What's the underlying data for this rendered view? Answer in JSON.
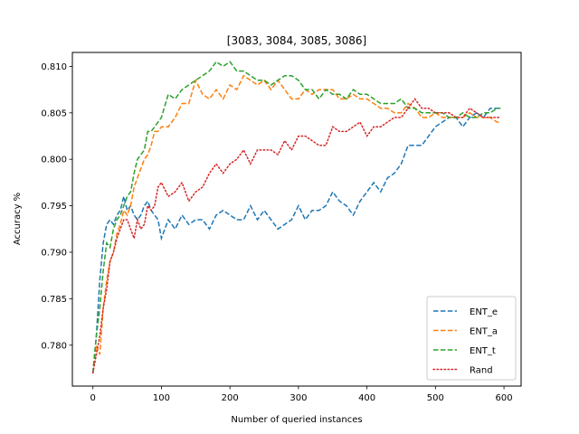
{
  "chart_data": {
    "type": "line",
    "title": "[3083, 3084, 3085, 3086]",
    "xlabel": "Number of queried instances",
    "ylabel": "Accuracy %",
    "xlim": [
      -30,
      625
    ],
    "ylim": [
      0.7756,
      0.8115
    ],
    "xticks": [
      0,
      100,
      200,
      300,
      400,
      500,
      600
    ],
    "yticks": [
      0.78,
      0.785,
      0.79,
      0.795,
      0.8,
      0.805,
      0.81
    ],
    "ytick_labels": [
      "0.780",
      "0.785",
      "0.790",
      "0.795",
      "0.800",
      "0.805",
      "0.810"
    ],
    "grid": false,
    "legend_position": "lower-right",
    "series": [
      {
        "name": "ENT_e",
        "color": "#1f77b4",
        "dash": "dashed",
        "x": [
          0,
          5,
          10,
          15,
          20,
          25,
          30,
          35,
          40,
          45,
          50,
          55,
          60,
          65,
          70,
          75,
          80,
          85,
          90,
          95,
          100,
          110,
          120,
          130,
          140,
          150,
          160,
          170,
          180,
          190,
          200,
          210,
          220,
          230,
          240,
          250,
          260,
          270,
          280,
          290,
          300,
          310,
          320,
          330,
          340,
          350,
          360,
          370,
          380,
          390,
          400,
          410,
          420,
          430,
          440,
          450,
          460,
          470,
          480,
          490,
          500,
          510,
          520,
          530,
          540,
          550,
          560,
          570,
          580,
          590,
          595
        ],
        "y": [
          0.777,
          0.781,
          0.787,
          0.791,
          0.793,
          0.7935,
          0.793,
          0.794,
          0.7945,
          0.796,
          0.7945,
          0.795,
          0.794,
          0.7935,
          0.794,
          0.795,
          0.7955,
          0.7945,
          0.794,
          0.7935,
          0.7915,
          0.7935,
          0.7925,
          0.794,
          0.793,
          0.7935,
          0.7935,
          0.7925,
          0.794,
          0.7945,
          0.794,
          0.7935,
          0.7935,
          0.795,
          0.7935,
          0.7945,
          0.7935,
          0.7925,
          0.793,
          0.7935,
          0.795,
          0.7935,
          0.7945,
          0.7945,
          0.795,
          0.7965,
          0.7955,
          0.795,
          0.794,
          0.7955,
          0.7965,
          0.7975,
          0.7965,
          0.798,
          0.7985,
          0.7995,
          0.8015,
          0.8015,
          0.8015,
          0.8025,
          0.8035,
          0.804,
          0.8045,
          0.8045,
          0.8035,
          0.8045,
          0.805,
          0.8045,
          0.8055,
          0.8055,
          0.8055
        ]
      },
      {
        "name": "ENT_a",
        "color": "#ff7f0e",
        "dash": "dashed",
        "x": [
          0,
          5,
          10,
          15,
          20,
          25,
          30,
          35,
          40,
          45,
          50,
          55,
          60,
          65,
          70,
          75,
          80,
          85,
          90,
          95,
          100,
          110,
          120,
          130,
          140,
          150,
          160,
          170,
          180,
          190,
          200,
          210,
          220,
          230,
          240,
          250,
          260,
          270,
          280,
          290,
          300,
          310,
          320,
          330,
          340,
          350,
          360,
          370,
          380,
          390,
          400,
          410,
          420,
          430,
          440,
          450,
          460,
          470,
          480,
          490,
          500,
          510,
          520,
          530,
          540,
          550,
          560,
          570,
          580,
          590,
          595
        ],
        "y": [
          0.777,
          0.78,
          0.779,
          0.784,
          0.787,
          0.789,
          0.79,
          0.792,
          0.793,
          0.7945,
          0.794,
          0.795,
          0.797,
          0.798,
          0.799,
          0.8,
          0.8005,
          0.8015,
          0.803,
          0.803,
          0.8035,
          0.8035,
          0.8045,
          0.806,
          0.806,
          0.8085,
          0.807,
          0.8065,
          0.8075,
          0.8065,
          0.808,
          0.8075,
          0.809,
          0.8085,
          0.808,
          0.8085,
          0.8075,
          0.8085,
          0.8075,
          0.8065,
          0.8065,
          0.8075,
          0.807,
          0.8075,
          0.8075,
          0.8075,
          0.8065,
          0.8065,
          0.807,
          0.8065,
          0.8065,
          0.806,
          0.8055,
          0.8055,
          0.805,
          0.805,
          0.806,
          0.8055,
          0.8045,
          0.8045,
          0.805,
          0.8045,
          0.8045,
          0.8045,
          0.8045,
          0.805,
          0.8045,
          0.8045,
          0.8045,
          0.804,
          0.804
        ]
      },
      {
        "name": "ENT_t",
        "color": "#2ca02c",
        "dash": "dashed",
        "x": [
          0,
          5,
          10,
          15,
          20,
          25,
          30,
          35,
          40,
          45,
          50,
          55,
          60,
          65,
          70,
          75,
          80,
          85,
          90,
          95,
          100,
          110,
          120,
          130,
          140,
          150,
          160,
          170,
          180,
          190,
          200,
          210,
          220,
          230,
          240,
          250,
          260,
          270,
          280,
          290,
          300,
          310,
          320,
          330,
          340,
          350,
          360,
          370,
          380,
          390,
          400,
          410,
          420,
          430,
          440,
          450,
          460,
          470,
          480,
          490,
          500,
          510,
          520,
          530,
          540,
          550,
          560,
          570,
          580,
          590,
          595
        ],
        "y": [
          0.777,
          0.781,
          0.784,
          0.788,
          0.791,
          0.7905,
          0.7925,
          0.7935,
          0.794,
          0.795,
          0.796,
          0.7965,
          0.7985,
          0.8,
          0.8005,
          0.801,
          0.803,
          0.803,
          0.8035,
          0.804,
          0.8045,
          0.807,
          0.8065,
          0.8075,
          0.808,
          0.8085,
          0.809,
          0.8095,
          0.8105,
          0.81,
          0.8105,
          0.8095,
          0.8095,
          0.809,
          0.8085,
          0.8085,
          0.808,
          0.8085,
          0.809,
          0.809,
          0.8085,
          0.8075,
          0.8075,
          0.8065,
          0.8075,
          0.807,
          0.807,
          0.8065,
          0.8075,
          0.807,
          0.807,
          0.8065,
          0.806,
          0.806,
          0.806,
          0.8065,
          0.8055,
          0.8055,
          0.805,
          0.805,
          0.805,
          0.805,
          0.8045,
          0.8045,
          0.805,
          0.8045,
          0.8045,
          0.805,
          0.805,
          0.8055,
          0.8055
        ]
      },
      {
        "name": "Rand",
        "color": "#d62728",
        "dash": "dotted",
        "x": [
          0,
          5,
          10,
          15,
          20,
          25,
          30,
          35,
          40,
          45,
          50,
          55,
          60,
          65,
          70,
          75,
          80,
          85,
          90,
          95,
          100,
          110,
          120,
          130,
          140,
          150,
          160,
          170,
          180,
          190,
          200,
          210,
          220,
          230,
          240,
          250,
          260,
          270,
          280,
          290,
          300,
          310,
          320,
          330,
          340,
          350,
          360,
          370,
          380,
          390,
          400,
          410,
          420,
          430,
          440,
          450,
          460,
          470,
          480,
          490,
          500,
          510,
          520,
          530,
          540,
          550,
          560,
          570,
          580,
          590,
          595
        ],
        "y": [
          0.777,
          0.779,
          0.781,
          0.784,
          0.786,
          0.789,
          0.79,
          0.7915,
          0.7925,
          0.7935,
          0.7935,
          0.7925,
          0.7915,
          0.7935,
          0.7925,
          0.793,
          0.795,
          0.7945,
          0.795,
          0.797,
          0.7975,
          0.796,
          0.7965,
          0.7975,
          0.7955,
          0.7965,
          0.797,
          0.7985,
          0.7995,
          0.7985,
          0.7995,
          0.8,
          0.801,
          0.7995,
          0.801,
          0.801,
          0.801,
          0.8005,
          0.802,
          0.801,
          0.8025,
          0.8025,
          0.802,
          0.8015,
          0.8015,
          0.8035,
          0.803,
          0.803,
          0.8035,
          0.804,
          0.8025,
          0.8035,
          0.8035,
          0.804,
          0.8045,
          0.8045,
          0.8055,
          0.8065,
          0.8055,
          0.8055,
          0.805,
          0.805,
          0.805,
          0.8045,
          0.8045,
          0.8055,
          0.805,
          0.8045,
          0.8045,
          0.8045,
          0.8045
        ]
      }
    ]
  }
}
